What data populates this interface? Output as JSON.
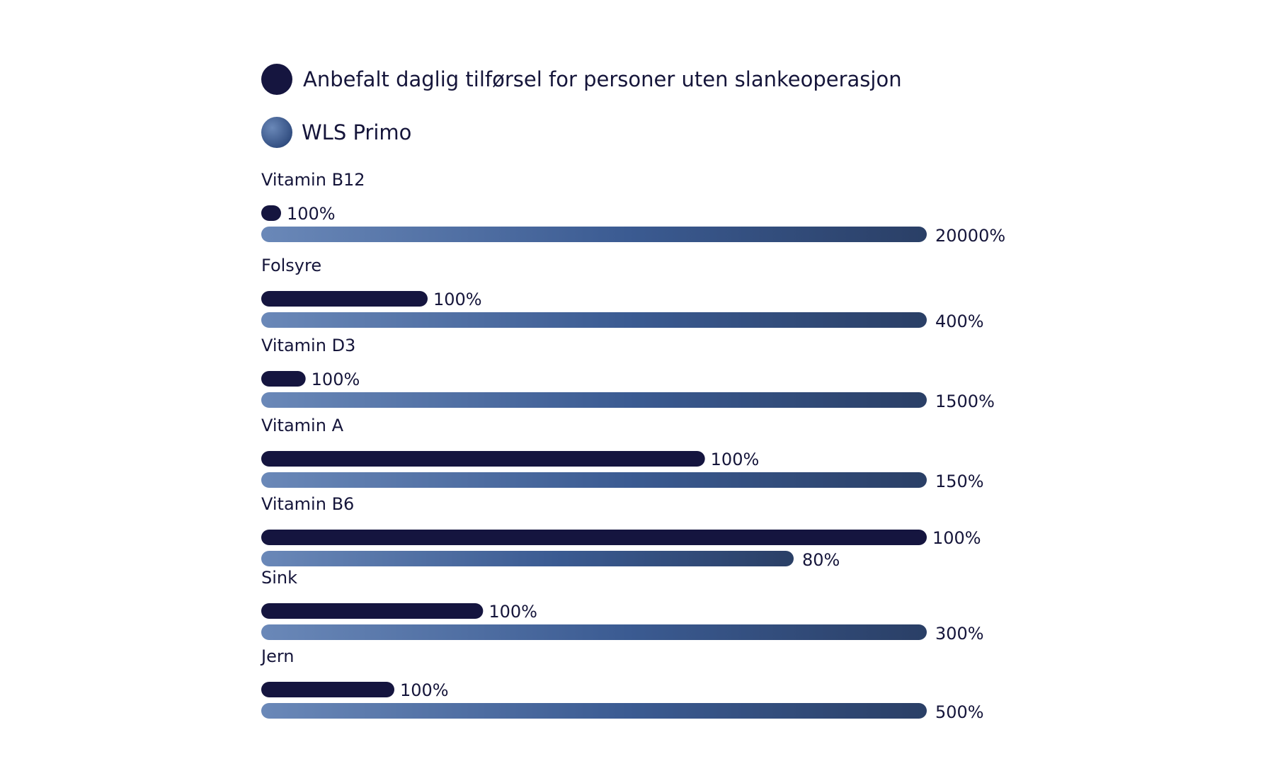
{
  "chart_data": {
    "type": "bar",
    "orientation": "horizontal",
    "legend_placement": "top-left",
    "grid": false,
    "legend": [
      {
        "name": "Anbefalt daglig tilførsel for personer uten slankeoperasjon",
        "color": "#15153f"
      },
      {
        "name": "WLS Primo",
        "color": "#3b5b92"
      }
    ],
    "series_colors": {
      "recommended": "#15153f",
      "wls_start": "#6a88b8",
      "wls_mid": "#3b5b92",
      "wls_end": "#2a3f66"
    },
    "categories": [
      {
        "name": "Vitamin B12",
        "recommended": {
          "value": 100,
          "label": "100%"
        },
        "wls": {
          "value": 20000,
          "label": "20000%"
        }
      },
      {
        "name": "Folsyre",
        "recommended": {
          "value": 100,
          "label": "100%"
        },
        "wls": {
          "value": 400,
          "label": "400%"
        }
      },
      {
        "name": "Vitamin D3",
        "recommended": {
          "value": 100,
          "label": "100%"
        },
        "wls": {
          "value": 1500,
          "label": "1500%"
        }
      },
      {
        "name": "Vitamin A",
        "recommended": {
          "value": 100,
          "label": "100%"
        },
        "wls": {
          "value": 150,
          "label": "150%"
        }
      },
      {
        "name": "Vitamin B6",
        "recommended": {
          "value": 100,
          "label": "100%"
        },
        "wls": {
          "value": 80,
          "label": "80%"
        }
      },
      {
        "name": "Sink",
        "recommended": {
          "value": 100,
          "label": "100%"
        },
        "wls": {
          "value": 300,
          "label": "300%"
        }
      },
      {
        "name": "Jern",
        "recommended": {
          "value": 100,
          "label": "100%"
        },
        "wls": {
          "value": 500,
          "label": "500%"
        }
      }
    ]
  }
}
